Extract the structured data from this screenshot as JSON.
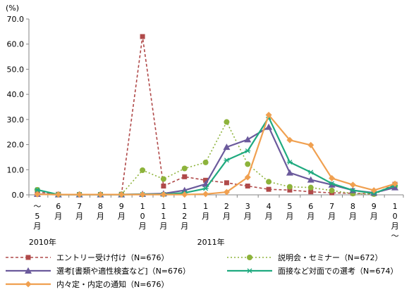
{
  "chart_data": {
    "type": "line",
    "unit_label": "(%)",
    "ylim": [
      0,
      70
    ],
    "yticks": [
      "0.0",
      "10.0",
      "20.0",
      "30.0",
      "40.0",
      "50.0",
      "60.0",
      "70.0"
    ],
    "grid": false,
    "legend_position": "bottom",
    "categories": [
      [
        "～",
        "5",
        "月"
      ],
      [
        "6",
        "月"
      ],
      [
        "7",
        "月"
      ],
      [
        "8",
        "月"
      ],
      [
        "9",
        "月"
      ],
      [
        "1",
        "0",
        "月"
      ],
      [
        "1",
        "1",
        "月"
      ],
      [
        "1",
        "2",
        "月"
      ],
      [
        "1",
        "月"
      ],
      [
        "2",
        "月"
      ],
      [
        "3",
        "月"
      ],
      [
        "4",
        "月"
      ],
      [
        "5",
        "月"
      ],
      [
        "6",
        "月"
      ],
      [
        "7",
        "月"
      ],
      [
        "8",
        "月"
      ],
      [
        "9",
        "月"
      ],
      [
        "1",
        "0",
        "月",
        "～"
      ]
    ],
    "year_labels": [
      {
        "text": "2010年",
        "index": 0
      },
      {
        "text": "2011年",
        "index": 8
      }
    ],
    "series": [
      {
        "name": "エントリー受け付け（N=676）",
        "color": "#b04a4a",
        "dash": "4,3",
        "marker": "square",
        "values": [
          1.2,
          0.2,
          0.1,
          0.1,
          0.2,
          63.0,
          3.5,
          7.2,
          5.8,
          4.8,
          3.5,
          2.2,
          1.9,
          1.2,
          0.8,
          0.6,
          0.4,
          4.2
        ]
      },
      {
        "name": "説明会・セミナー（N=672）",
        "color": "#8db33b",
        "dash": "2,3",
        "marker": "circle",
        "values": [
          2.0,
          0.1,
          0.1,
          0.1,
          0.2,
          9.8,
          6.3,
          10.5,
          12.9,
          29.0,
          12.2,
          5.2,
          3.2,
          2.9,
          1.7,
          0.5,
          0.3,
          3.4
        ]
      },
      {
        "name": "選考[書類や適性検査など]（N=676）",
        "color": "#6b5a9c",
        "dash": "",
        "marker": "triangle",
        "values": [
          0.3,
          0.1,
          0.1,
          0.1,
          0.1,
          0.3,
          0.5,
          1.8,
          4.3,
          19.0,
          22.0,
          27.0,
          8.8,
          6.0,
          4.0,
          1.8,
          0.8,
          2.9
        ]
      },
      {
        "name": "面接など対面での選考（N=674）",
        "color": "#1faa7f",
        "dash": "",
        "marker": "star",
        "values": [
          2.0,
          0.1,
          0.1,
          0.1,
          0.1,
          0.2,
          0.2,
          0.8,
          2.5,
          13.8,
          17.5,
          30.8,
          13.0,
          9.0,
          4.5,
          1.8,
          0.6,
          3.7
        ]
      },
      {
        "name": "内々定・内定の通知（N=676）",
        "color": "#f0a050",
        "dash": "",
        "marker": "diamond",
        "values": [
          0.2,
          0.1,
          0.1,
          0.1,
          0.1,
          0.1,
          0.1,
          0.1,
          0.3,
          1.1,
          7.0,
          31.8,
          21.8,
          19.8,
          6.6,
          4.0,
          1.8,
          4.4
        ]
      }
    ]
  }
}
